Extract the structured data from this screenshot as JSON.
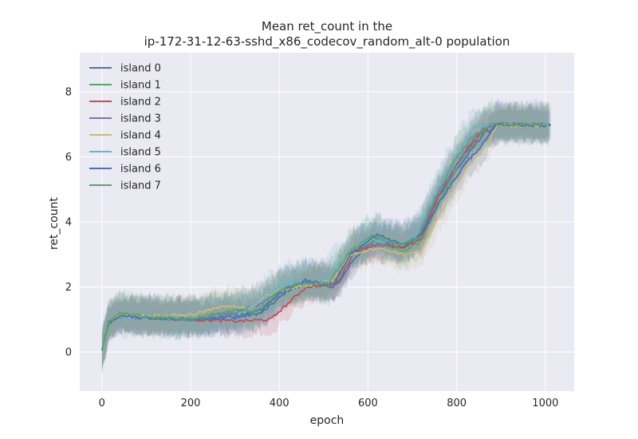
{
  "chart_data": {
    "type": "line",
    "title_line1": "Mean ret_count in the",
    "title_line2": "ip-172-31-12-63-sshd_x86_codecov_random_alt-0 population",
    "xlabel": "epoch",
    "ylabel": "ret_count",
    "xlim": [
      -50,
      1065
    ],
    "ylim": [
      -1.2,
      9.2
    ],
    "xticks": [
      0,
      200,
      400,
      600,
      800,
      1000
    ],
    "yticks": [
      0,
      2,
      4,
      6,
      8
    ],
    "grid": true,
    "legend_position": "top-left",
    "series": [
      {
        "name": "island 0",
        "color": "#4c72b0",
        "points": [
          [
            0,
            0.05
          ],
          [
            15,
            0.9
          ],
          [
            40,
            1.1
          ],
          [
            100,
            1.05
          ],
          [
            200,
            1.0
          ],
          [
            300,
            1.05
          ],
          [
            360,
            1.2
          ],
          [
            420,
            1.9
          ],
          [
            470,
            2.1
          ],
          [
            530,
            2.05
          ],
          [
            570,
            2.9
          ],
          [
            620,
            3.5
          ],
          [
            680,
            3.2
          ],
          [
            720,
            3.6
          ],
          [
            760,
            4.8
          ],
          [
            800,
            5.6
          ],
          [
            860,
            6.7
          ],
          [
            900,
            7.0
          ],
          [
            1000,
            6.95
          ],
          [
            1015,
            7.0
          ]
        ],
        "band": [
          0.55,
          0.45
        ]
      },
      {
        "name": "island 1",
        "color": "#55a868",
        "points": [
          [
            0,
            0.05
          ],
          [
            15,
            0.85
          ],
          [
            40,
            1.15
          ],
          [
            100,
            1.1
          ],
          [
            200,
            1.0
          ],
          [
            300,
            1.2
          ],
          [
            360,
            1.3
          ],
          [
            410,
            1.9
          ],
          [
            460,
            2.2
          ],
          [
            520,
            2.1
          ],
          [
            560,
            3.0
          ],
          [
            610,
            3.4
          ],
          [
            680,
            3.1
          ],
          [
            720,
            3.4
          ],
          [
            760,
            4.6
          ],
          [
            810,
            5.9
          ],
          [
            860,
            6.8
          ],
          [
            900,
            7.0
          ],
          [
            1000,
            6.95
          ],
          [
            1010,
            7.0
          ]
        ],
        "band": [
          0.6,
          0.5
        ]
      },
      {
        "name": "island 2",
        "color": "#c44e52",
        "points": [
          [
            0,
            0.05
          ],
          [
            15,
            0.9
          ],
          [
            40,
            1.1
          ],
          [
            100,
            1.05
          ],
          [
            200,
            1.0
          ],
          [
            300,
            0.95
          ],
          [
            380,
            1.0
          ],
          [
            420,
            1.5
          ],
          [
            460,
            2.0
          ],
          [
            530,
            2.1
          ],
          [
            570,
            3.1
          ],
          [
            620,
            3.3
          ],
          [
            680,
            3.2
          ],
          [
            720,
            3.5
          ],
          [
            760,
            4.8
          ],
          [
            810,
            6.0
          ],
          [
            860,
            6.8
          ],
          [
            880,
            7.0
          ],
          [
            1000,
            7.0
          ],
          [
            1010,
            7.0
          ]
        ],
        "band": [
          0.55,
          0.45
        ]
      },
      {
        "name": "island 3",
        "color": "#8172b2",
        "points": [
          [
            0,
            0.05
          ],
          [
            15,
            0.9
          ],
          [
            40,
            1.1
          ],
          [
            100,
            1.05
          ],
          [
            200,
            1.0
          ],
          [
            300,
            1.2
          ],
          [
            360,
            1.5
          ],
          [
            420,
            2.0
          ],
          [
            470,
            2.2
          ],
          [
            520,
            2.1
          ],
          [
            570,
            3.2
          ],
          [
            620,
            3.3
          ],
          [
            680,
            3.3
          ],
          [
            720,
            3.7
          ],
          [
            760,
            4.9
          ],
          [
            820,
            6.2
          ],
          [
            860,
            6.9
          ],
          [
            900,
            7.0
          ],
          [
            1000,
            7.0
          ],
          [
            1010,
            7.0
          ]
        ],
        "band": [
          0.6,
          0.5
        ]
      },
      {
        "name": "island 4",
        "color": "#ccb974",
        "points": [
          [
            0,
            0.05
          ],
          [
            15,
            0.9
          ],
          [
            40,
            1.15
          ],
          [
            100,
            1.1
          ],
          [
            200,
            1.15
          ],
          [
            290,
            1.45
          ],
          [
            330,
            1.3
          ],
          [
            380,
            1.8
          ],
          [
            440,
            2.0
          ],
          [
            520,
            2.2
          ],
          [
            560,
            3.0
          ],
          [
            620,
            3.2
          ],
          [
            680,
            3.0
          ],
          [
            720,
            3.1
          ],
          [
            760,
            4.2
          ],
          [
            820,
            5.6
          ],
          [
            860,
            6.2
          ],
          [
            890,
            6.95
          ],
          [
            1000,
            6.95
          ],
          [
            1010,
            7.0
          ]
        ],
        "band": [
          0.55,
          0.5
        ]
      },
      {
        "name": "island 5",
        "color": "#64b5cd",
        "points": [
          [
            0,
            0.05
          ],
          [
            15,
            0.9
          ],
          [
            40,
            1.1
          ],
          [
            100,
            1.05
          ],
          [
            200,
            1.05
          ],
          [
            300,
            1.1
          ],
          [
            360,
            1.6
          ],
          [
            400,
            2.0
          ],
          [
            440,
            2.2
          ],
          [
            500,
            2.2
          ],
          [
            560,
            3.1
          ],
          [
            610,
            3.5
          ],
          [
            670,
            3.3
          ],
          [
            710,
            3.6
          ],
          [
            750,
            4.8
          ],
          [
            800,
            6.1
          ],
          [
            840,
            6.9
          ],
          [
            880,
            7.0
          ],
          [
            1000,
            7.0
          ],
          [
            1010,
            7.0
          ]
        ],
        "band": [
          0.6,
          0.55
        ]
      },
      {
        "name": "island 6",
        "color": "#4c72b0",
        "points": [
          [
            0,
            0.05
          ],
          [
            15,
            0.9
          ],
          [
            40,
            1.1
          ],
          [
            100,
            1.05
          ],
          [
            200,
            1.0
          ],
          [
            300,
            1.1
          ],
          [
            360,
            1.3
          ],
          [
            410,
            1.9
          ],
          [
            460,
            2.2
          ],
          [
            520,
            2.0
          ],
          [
            560,
            3.0
          ],
          [
            620,
            3.6
          ],
          [
            680,
            3.3
          ],
          [
            720,
            3.6
          ],
          [
            760,
            4.6
          ],
          [
            820,
            5.8
          ],
          [
            860,
            6.4
          ],
          [
            890,
            7.0
          ],
          [
            1000,
            6.95
          ],
          [
            1015,
            7.0
          ]
        ],
        "band": [
          0.6,
          0.5
        ]
      },
      {
        "name": "island 7",
        "color": "#55a868",
        "points": [
          [
            0,
            0.05
          ],
          [
            15,
            0.9
          ],
          [
            40,
            1.2
          ],
          [
            100,
            1.1
          ],
          [
            200,
            1.0
          ],
          [
            300,
            1.3
          ],
          [
            350,
            1.25
          ],
          [
            400,
            1.9
          ],
          [
            450,
            2.1
          ],
          [
            510,
            2.1
          ],
          [
            560,
            3.1
          ],
          [
            610,
            3.6
          ],
          [
            670,
            3.3
          ],
          [
            710,
            3.5
          ],
          [
            750,
            4.7
          ],
          [
            800,
            6.0
          ],
          [
            840,
            6.7
          ],
          [
            880,
            7.0
          ],
          [
            1000,
            7.0
          ],
          [
            1010,
            7.0
          ]
        ],
        "band": [
          0.6,
          0.5
        ]
      }
    ]
  }
}
